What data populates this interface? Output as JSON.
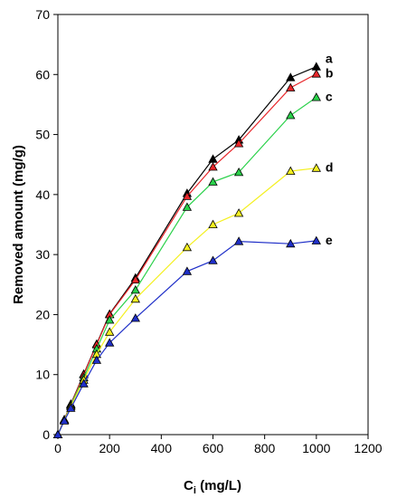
{
  "chart_data": {
    "type": "line",
    "title": "",
    "xlabel": {
      "main": "C",
      "sub": "i",
      "rest": " (mg/L)"
    },
    "ylabel": "Removed amount (mg/g)",
    "xlim": [
      0,
      1200
    ],
    "ylim": [
      0,
      70
    ],
    "xticks": [
      "0",
      "200",
      "400",
      "600",
      "800",
      "1000",
      "1200"
    ],
    "yticks": [
      "0",
      "10",
      "20",
      "30",
      "40",
      "50",
      "60",
      "70"
    ],
    "grid": false,
    "marker": "triangle",
    "series": [
      {
        "name": "a",
        "color": "#000000",
        "x": [
          0,
          25,
          50,
          100,
          150,
          200,
          300,
          500,
          600,
          700,
          900,
          1000
        ],
        "y": [
          0,
          2.5,
          5.1,
          10.1,
          15.1,
          20.1,
          26.1,
          40.2,
          45.9,
          49.1,
          59.5,
          61.3
        ]
      },
      {
        "name": "b",
        "color": "#e8262a",
        "x": [
          0,
          25,
          50,
          100,
          150,
          200,
          300,
          500,
          600,
          700,
          900,
          1000
        ],
        "y": [
          0,
          2.5,
          5.0,
          10.0,
          15.0,
          20.0,
          25.8,
          39.7,
          44.6,
          48.5,
          57.8,
          60.1
        ]
      },
      {
        "name": "c",
        "color": "#2ad14a",
        "x": [
          0,
          25,
          50,
          100,
          150,
          200,
          300,
          500,
          600,
          700,
          900,
          1000
        ],
        "y": [
          0,
          2.4,
          4.9,
          9.5,
          14.3,
          19.1,
          24.1,
          37.9,
          42.1,
          43.7,
          53.2,
          56.2
        ]
      },
      {
        "name": "d",
        "color": "#f4f020",
        "x": [
          0,
          25,
          50,
          100,
          150,
          200,
          300,
          500,
          600,
          700,
          900,
          1000
        ],
        "y": [
          0,
          2.4,
          4.7,
          9.1,
          13.4,
          17.1,
          22.6,
          31.2,
          35.0,
          36.9,
          43.9,
          44.4
        ]
      },
      {
        "name": "e",
        "color": "#1f2fc8",
        "x": [
          0,
          25,
          50,
          100,
          150,
          200,
          300,
          500,
          600,
          700,
          900,
          1000
        ],
        "y": [
          0,
          2.3,
          4.4,
          8.5,
          12.4,
          15.3,
          19.4,
          27.2,
          29.0,
          32.2,
          31.8,
          32.3
        ]
      }
    ]
  }
}
